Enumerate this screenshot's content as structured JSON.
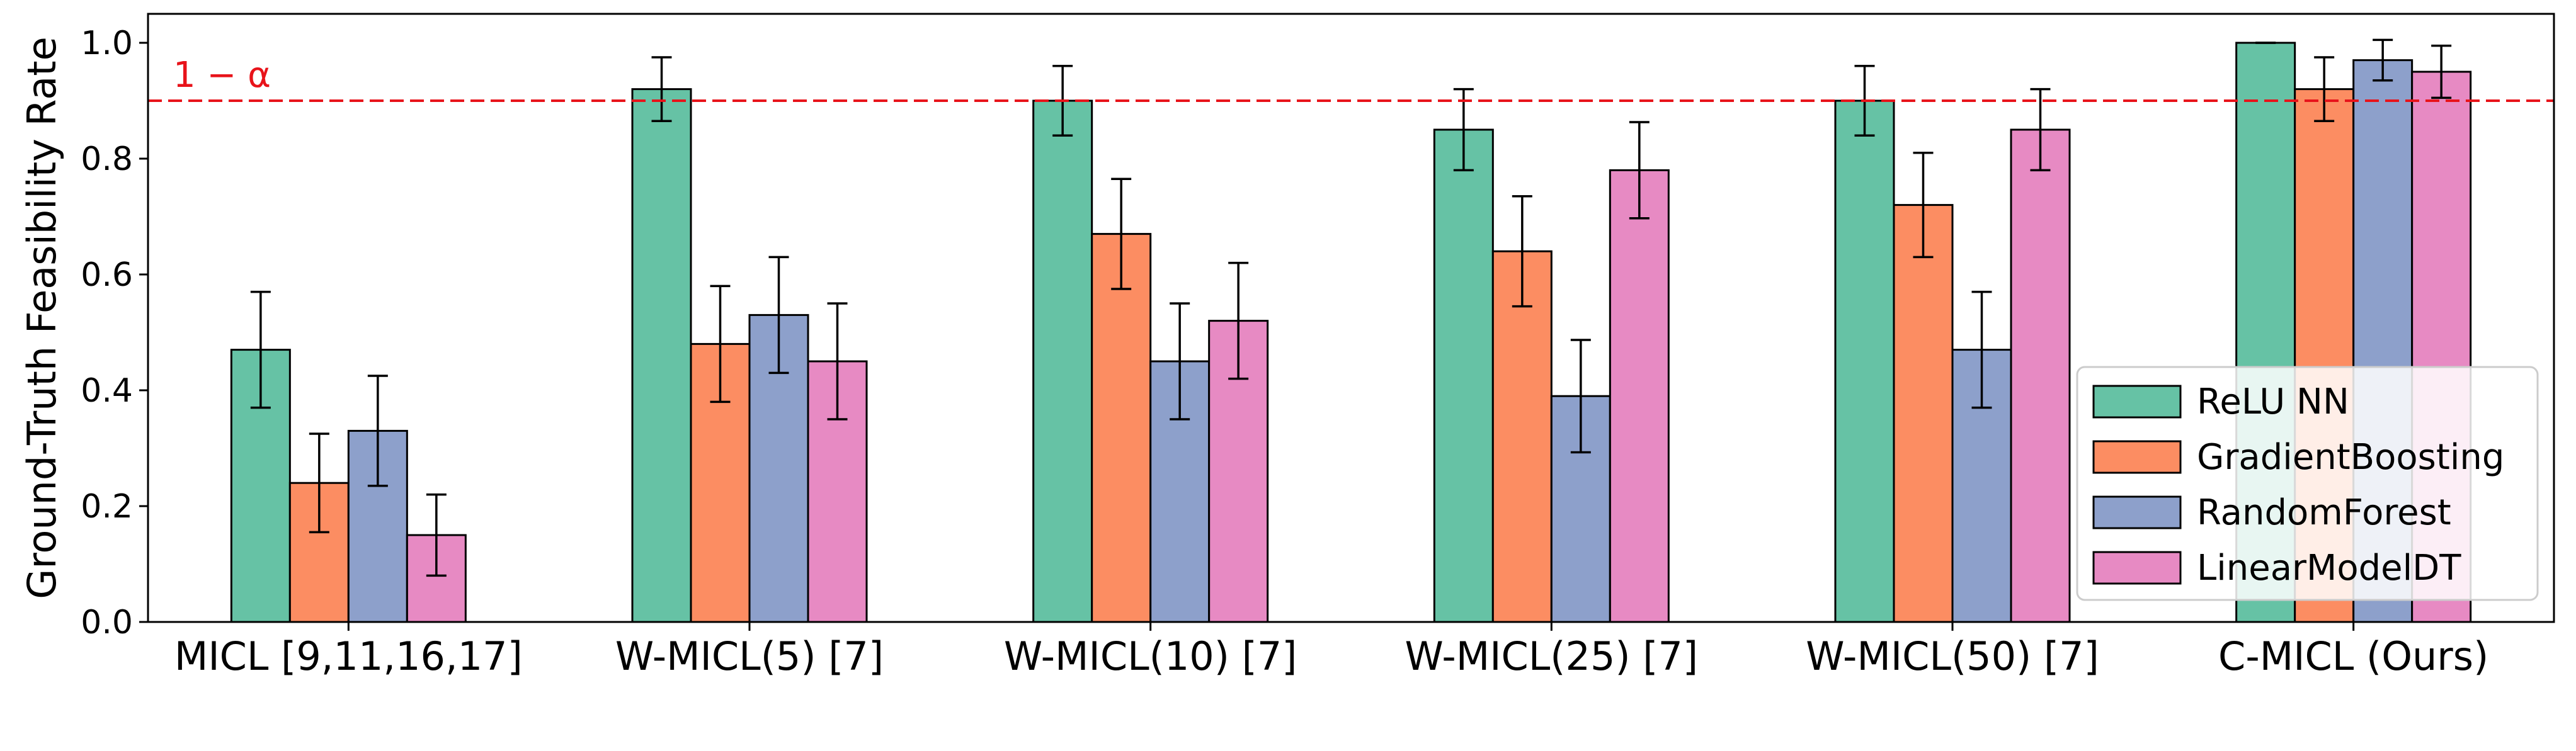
{
  "chart_data": {
    "type": "bar",
    "title": "",
    "xlabel": "",
    "ylabel": "Ground-Truth Feasibility Rate",
    "ylim": [
      0,
      1.05
    ],
    "yticks": [
      "0.0",
      "0.2",
      "0.4",
      "0.6",
      "0.8",
      "1.0"
    ],
    "categories": [
      "MICL [9,11,16,17]",
      "W-MICL(5) [7]",
      "W-MICL(10) [7]",
      "W-MICL(25) [7]",
      "W-MICL(50) [7]",
      "C-MICL (Ours)"
    ],
    "series": [
      {
        "name": "ReLU NN",
        "color": "#66c2a5",
        "values": [
          0.47,
          0.92,
          0.9,
          0.85,
          0.9,
          1.0
        ],
        "errors": [
          0.1,
          0.055,
          0.06,
          0.07,
          0.06,
          0.0
        ]
      },
      {
        "name": "GradientBoosting",
        "color": "#fc8d62",
        "values": [
          0.24,
          0.48,
          0.67,
          0.64,
          0.72,
          0.92
        ],
        "errors": [
          0.085,
          0.1,
          0.095,
          0.095,
          0.09,
          0.055
        ]
      },
      {
        "name": "RandomForest",
        "color": "#8da0cb",
        "values": [
          0.33,
          0.53,
          0.45,
          0.39,
          0.47,
          0.97
        ],
        "errors": [
          0.095,
          0.1,
          0.1,
          0.097,
          0.1,
          0.035
        ]
      },
      {
        "name": "LinearModelDT",
        "color": "#e78ac3",
        "values": [
          0.15,
          0.45,
          0.52,
          0.78,
          0.85,
          0.95
        ],
        "errors": [
          0.07,
          0.1,
          0.1,
          0.083,
          0.07,
          0.045
        ]
      }
    ],
    "threshold": {
      "value": 0.9,
      "label": "1 − α",
      "color": "#e8131a",
      "style": "dashed"
    },
    "legend": {
      "position": "lower-right"
    },
    "grid": false
  }
}
